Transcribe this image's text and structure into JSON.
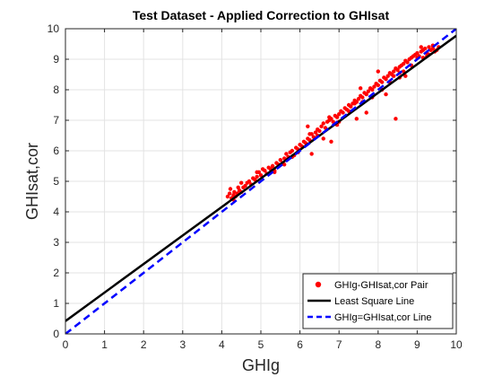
{
  "chart_data": {
    "type": "scatter",
    "title": "Test Dataset - Applied Correction to GHIsat",
    "xlabel": "GHIg",
    "ylabel": "GHIsat,cor",
    "xlim": [
      0,
      10
    ],
    "ylim": [
      0,
      10
    ],
    "xticks": [
      0,
      1,
      2,
      3,
      4,
      5,
      6,
      7,
      8,
      9,
      10
    ],
    "yticks": [
      0,
      1,
      2,
      3,
      4,
      5,
      6,
      7,
      8,
      9,
      10
    ],
    "grid": true,
    "legend_position": "bottom-right",
    "series": [
      {
        "name": "GHIg-GHIsat,cor Pair",
        "kind": "scatter",
        "color": "#ff0000",
        "points": [
          [
            4.15,
            4.5
          ],
          [
            4.2,
            4.6
          ],
          [
            4.22,
            4.75
          ],
          [
            4.25,
            4.45
          ],
          [
            4.3,
            4.55
          ],
          [
            4.32,
            4.65
          ],
          [
            4.35,
            4.5
          ],
          [
            4.4,
            4.6
          ],
          [
            4.42,
            4.8
          ],
          [
            4.45,
            4.7
          ],
          [
            4.5,
            4.65
          ],
          [
            4.55,
            4.8
          ],
          [
            4.6,
            4.85
          ],
          [
            4.65,
            4.95
          ],
          [
            4.7,
            5.0
          ],
          [
            4.75,
            4.9
          ],
          [
            4.8,
            5.1
          ],
          [
            4.85,
            5.05
          ],
          [
            4.9,
            5.15
          ],
          [
            4.95,
            5.3
          ],
          [
            5.0,
            5.2
          ],
          [
            5.05,
            5.4
          ],
          [
            5.1,
            5.35
          ],
          [
            5.15,
            5.25
          ],
          [
            5.2,
            5.45
          ],
          [
            5.25,
            5.4
          ],
          [
            5.3,
            5.5
          ],
          [
            5.35,
            5.3
          ],
          [
            5.4,
            5.6
          ],
          [
            5.45,
            5.55
          ],
          [
            5.5,
            5.7
          ],
          [
            5.55,
            5.6
          ],
          [
            5.6,
            5.75
          ],
          [
            5.65,
            5.9
          ],
          [
            5.7,
            5.8
          ],
          [
            5.75,
            5.95
          ],
          [
            5.8,
            6.0
          ],
          [
            5.85,
            5.85
          ],
          [
            5.9,
            6.1
          ],
          [
            5.95,
            6.05
          ],
          [
            6.0,
            6.2
          ],
          [
            6.05,
            6.15
          ],
          [
            6.1,
            6.3
          ],
          [
            6.15,
            6.25
          ],
          [
            6.2,
            6.4
          ],
          [
            6.25,
            6.35
          ],
          [
            6.3,
            6.55
          ],
          [
            6.35,
            6.45
          ],
          [
            6.4,
            6.6
          ],
          [
            6.45,
            6.7
          ],
          [
            6.5,
            6.65
          ],
          [
            6.55,
            6.8
          ],
          [
            6.6,
            6.9
          ],
          [
            6.65,
            6.75
          ],
          [
            6.7,
            6.95
          ],
          [
            6.75,
            7.0
          ],
          [
            6.8,
            7.05
          ],
          [
            6.85,
            6.95
          ],
          [
            6.9,
            7.15
          ],
          [
            6.95,
            7.1
          ],
          [
            7.0,
            7.2
          ],
          [
            7.05,
            7.3
          ],
          [
            7.1,
            7.25
          ],
          [
            7.15,
            7.4
          ],
          [
            7.2,
            7.35
          ],
          [
            7.25,
            7.5
          ],
          [
            7.3,
            7.45
          ],
          [
            7.35,
            7.55
          ],
          [
            7.4,
            7.65
          ],
          [
            7.45,
            7.6
          ],
          [
            7.5,
            7.7
          ],
          [
            7.55,
            7.8
          ],
          [
            7.6,
            7.75
          ],
          [
            7.65,
            7.9
          ],
          [
            7.7,
            7.85
          ],
          [
            7.75,
            7.95
          ],
          [
            7.8,
            8.05
          ],
          [
            7.85,
            8.0
          ],
          [
            7.9,
            8.1
          ],
          [
            7.95,
            8.2
          ],
          [
            8.0,
            8.15
          ],
          [
            8.05,
            8.3
          ],
          [
            8.1,
            8.25
          ],
          [
            8.15,
            8.4
          ],
          [
            8.2,
            8.35
          ],
          [
            8.25,
            8.45
          ],
          [
            8.3,
            8.55
          ],
          [
            8.35,
            8.5
          ],
          [
            8.4,
            8.6
          ],
          [
            8.45,
            8.7
          ],
          [
            8.5,
            8.65
          ],
          [
            8.55,
            8.75
          ],
          [
            8.6,
            8.8
          ],
          [
            8.65,
            8.85
          ],
          [
            8.7,
            8.95
          ],
          [
            8.75,
            8.9
          ],
          [
            8.8,
            9.0
          ],
          [
            8.85,
            9.05
          ],
          [
            8.9,
            9.1
          ],
          [
            8.95,
            9.15
          ],
          [
            9.0,
            9.2
          ],
          [
            9.05,
            9.1
          ],
          [
            9.1,
            9.25
          ],
          [
            9.15,
            9.3
          ],
          [
            9.2,
            9.35
          ],
          [
            9.25,
            9.2
          ],
          [
            9.3,
            9.4
          ],
          [
            9.35,
            9.3
          ],
          [
            9.4,
            9.35
          ],
          [
            9.45,
            9.25
          ],
          [
            9.5,
            9.3
          ],
          [
            9.55,
            9.4
          ],
          [
            4.3,
            4.4
          ],
          [
            4.9,
            5.3
          ],
          [
            5.3,
            5.5
          ],
          [
            5.6,
            5.55
          ],
          [
            5.8,
            5.8
          ],
          [
            6.25,
            6.55
          ],
          [
            6.45,
            6.5
          ],
          [
            6.75,
            7.1
          ],
          [
            6.95,
            6.85
          ],
          [
            7.25,
            7.3
          ],
          [
            7.4,
            7.55
          ],
          [
            7.6,
            7.6
          ],
          [
            7.85,
            7.75
          ],
          [
            8.1,
            8.0
          ],
          [
            8.3,
            8.25
          ],
          [
            8.4,
            8.45
          ],
          [
            8.55,
            8.55
          ],
          [
            8.65,
            8.6
          ],
          [
            8.85,
            8.8
          ],
          [
            9.0,
            9.05
          ],
          [
            9.15,
            9.05
          ],
          [
            9.3,
            9.15
          ],
          [
            9.4,
            9.45
          ],
          [
            9.1,
            9.4
          ],
          [
            6.2,
            6.8
          ],
          [
            6.3,
            5.9
          ],
          [
            6.8,
            6.3
          ],
          [
            7.45,
            7.05
          ],
          [
            7.7,
            7.25
          ],
          [
            7.55,
            8.05
          ],
          [
            8.2,
            7.85
          ],
          [
            8.45,
            7.05
          ],
          [
            8.0,
            8.6
          ],
          [
            8.55,
            8.4
          ],
          [
            8.7,
            8.45
          ],
          [
            9.25,
            9.1
          ],
          [
            4.5,
            4.95
          ],
          [
            5.35,
            5.35
          ],
          [
            5.65,
            5.7
          ],
          [
            5.95,
            5.95
          ],
          [
            6.6,
            6.4
          ],
          [
            7.0,
            6.95
          ]
        ]
      },
      {
        "name": "Least Square Line",
        "kind": "line",
        "color": "#000000",
        "dash": "solid",
        "x": [
          0,
          10
        ],
        "y": [
          0.42,
          9.77
        ]
      },
      {
        "name": "GHIg=GHIsat,cor Line",
        "kind": "line",
        "color": "#0000ff",
        "dash": "dashed",
        "x": [
          0,
          10
        ],
        "y": [
          0,
          10
        ]
      }
    ]
  }
}
